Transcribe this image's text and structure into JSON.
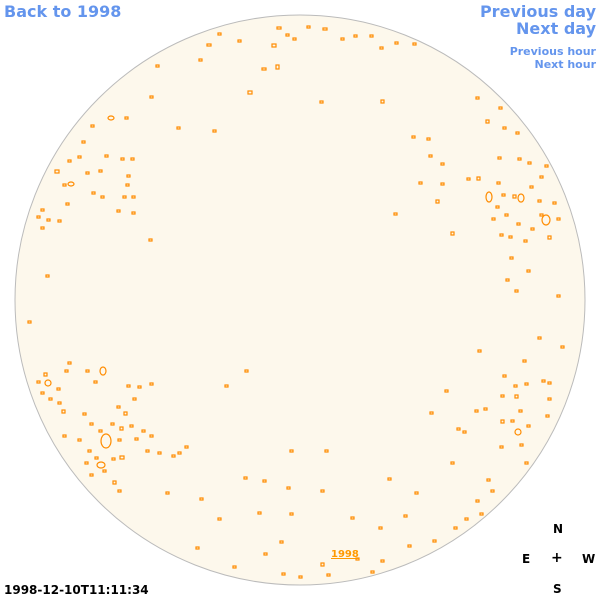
{
  "nav": {
    "back": "Back to 1998",
    "previous_day": "Previous day",
    "next_day": "Next day",
    "previous_hour": "Previous hour",
    "next_hour": "Next hour"
  },
  "disk": {
    "fill_color": "#fdf8ec",
    "contour_color": "#ff8c00",
    "year_label": "1998"
  },
  "timestamp": "1998-12-10T11:11:34",
  "compass": {
    "north": "N",
    "east": "E",
    "center": "+",
    "west": "W",
    "south": "S"
  }
}
